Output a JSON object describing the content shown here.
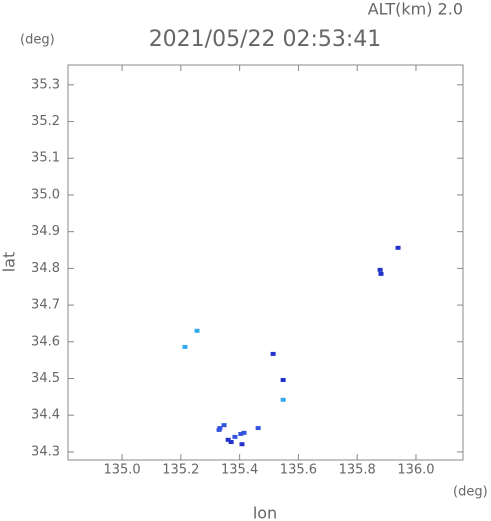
{
  "chart_data": {
    "type": "scatter",
    "title": "2021/05/22 02:53:41",
    "subtitle": "ALT(km) 2.0",
    "x_label": "lon",
    "y_label": "lat",
    "x_unit": "(deg)",
    "y_unit": "(deg)",
    "xlim": [
      134.816,
      136.16
    ],
    "ylim": [
      34.278,
      35.354
    ],
    "xticks": [
      {
        "value": 135,
        "label": "135.0"
      },
      135.2,
      135.4,
      135.6,
      135.8,
      {
        "value": 136,
        "label": "136.0"
      }
    ],
    "yticks": [
      34.3,
      34.4,
      34.5,
      34.6,
      34.7,
      34.8,
      34.9,
      {
        "value": 35,
        "label": "35.0"
      },
      35.1,
      35.2,
      35.3
    ],
    "x": [
      135.939,
      135.878,
      135.881,
      135.255,
      135.214,
      135.514,
      135.548,
      135.548,
      135.333,
      135.361,
      135.384,
      135.404,
      135.415,
      135.347,
      135.371,
      135.408,
      135.463,
      135.33
    ],
    "values": [
      34.856,
      34.796,
      34.785,
      34.63,
      34.586,
      34.567,
      34.496,
      34.442,
      34.365,
      34.333,
      34.341,
      34.349,
      34.352,
      34.373,
      34.327,
      34.321,
      34.365,
      34.36
    ],
    "colors": [
      "#2233cc",
      "#2233cc",
      "#2233cc",
      "#33aaee",
      "#33aaee",
      "#2233cc",
      "#2233cc",
      "#33aaee",
      "#3355dd",
      "#2233cc",
      "#3355dd",
      "#3355dd",
      "#3355dd",
      "#3355dd",
      "#2233cc",
      "#2233cc",
      "#3355dd",
      "#3355dd"
    ]
  }
}
